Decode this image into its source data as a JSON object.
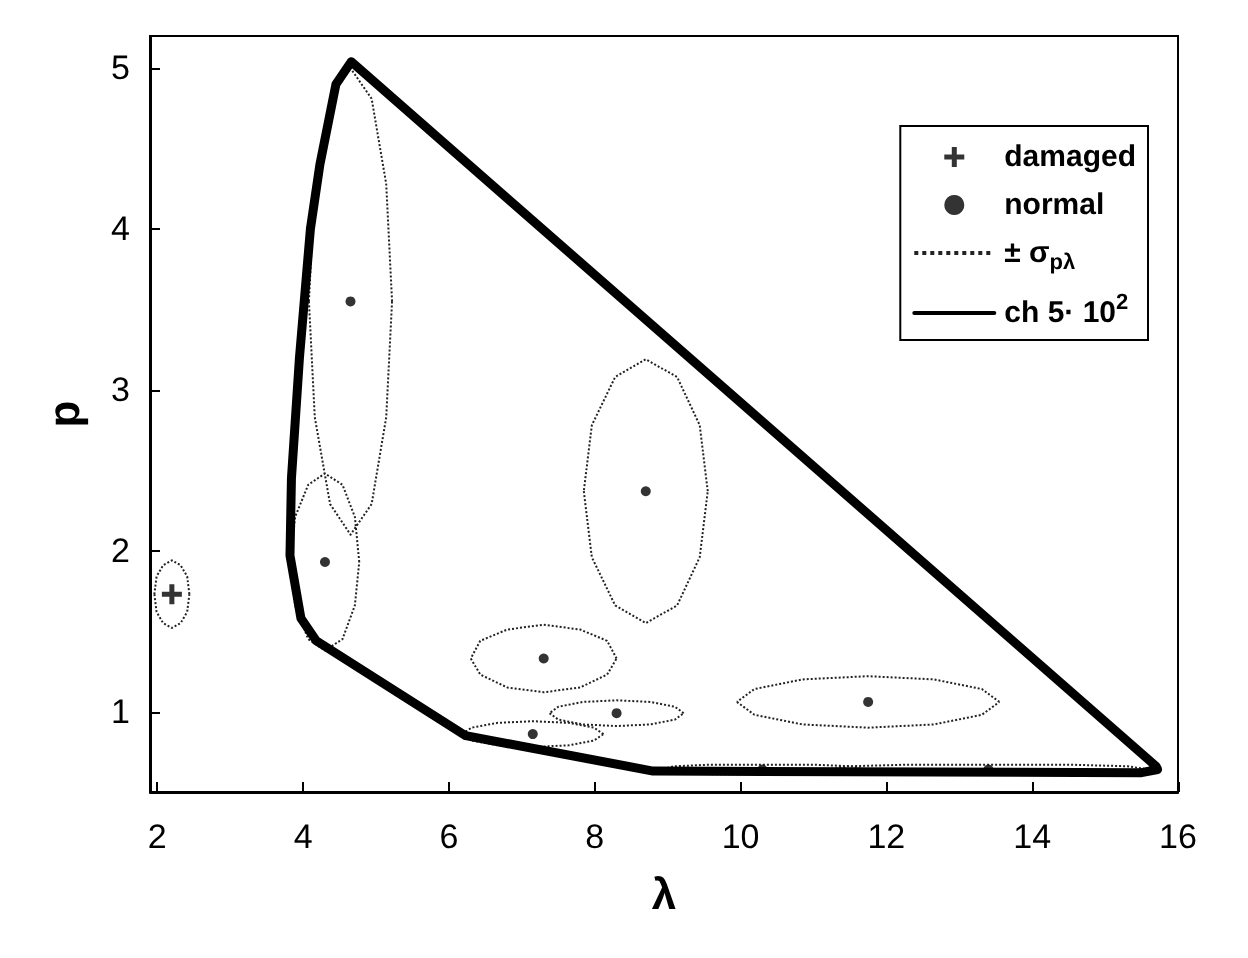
{
  "chart_data": {
    "type": "scatter",
    "xlabel": "λ",
    "ylabel": "p",
    "xlim": [
      1.9,
      16
    ],
    "ylim": [
      0.5,
      5.2
    ],
    "xticks": [
      2,
      4,
      6,
      8,
      10,
      12,
      14,
      16
    ],
    "yticks": [
      1,
      2,
      3,
      4,
      5
    ],
    "grid": false,
    "legend": "top right",
    "series": [
      {
        "name": "damaged",
        "marker": "cross",
        "color": "#000000",
        "x": [
          2.2
        ],
        "values": [
          1.73
        ]
      },
      {
        "name": "normal",
        "marker": "circle",
        "color": "#000000",
        "x": [
          4.65,
          4.3,
          8.7,
          7.3,
          8.3,
          7.15,
          11.75,
          10.3,
          13.4
        ],
        "values": [
          3.55,
          1.93,
          2.37,
          1.33,
          0.99,
          0.86,
          1.06,
          0.64,
          0.64
        ]
      },
      {
        "name": "± σ$_{pλ}$",
        "type": "line",
        "line_style": "dotted",
        "marker": "none",
        "color": "#222222",
        "x": [
          2.44,
          2.41,
          2.32,
          2.2,
          2.08,
          1.99,
          1.96,
          null,
          1.96,
          1.99,
          2.08,
          2.2,
          2.32,
          2.41,
          2.44,
          null,
          5.22,
          5.14,
          4.94,
          4.65,
          4.37,
          4.16,
          4.08,
          null,
          4.08,
          4.16,
          4.37,
          4.65,
          4.94,
          5.14,
          5.22,
          null,
          4.77,
          4.71,
          4.54,
          4.3,
          4.07,
          3.89,
          3.83,
          null,
          3.83,
          3.89,
          4.07,
          4.3,
          4.54,
          4.71,
          4.77,
          null,
          9.55,
          9.44,
          9.13,
          8.7,
          8.28,
          7.96,
          7.85,
          null,
          7.85,
          7.96,
          8.28,
          8.7,
          9.13,
          9.44,
          9.55,
          null,
          8.3,
          8.17,
          7.8,
          7.3,
          6.8,
          6.43,
          6.3,
          null,
          6.3,
          6.43,
          6.8,
          7.3,
          7.8,
          8.17,
          8.3,
          null,
          9.22,
          9.1,
          8.76,
          8.3,
          7.84,
          7.5,
          7.38,
          null,
          7.38,
          7.5,
          7.84,
          8.3,
          8.76,
          9.1,
          9.22,
          null,
          8.12,
          7.99,
          7.64,
          7.15,
          6.67,
          6.31,
          6.18,
          null,
          6.18,
          6.31,
          6.67,
          7.15,
          7.64,
          7.99,
          8.12,
          null,
          13.55,
          13.31,
          12.65,
          11.75,
          10.85,
          10.19,
          9.95,
          null,
          9.95,
          10.19,
          10.85,
          11.75,
          12.65,
          13.31,
          13.55,
          null,
          11.7,
          11.51,
          11.0,
          10.3,
          9.6,
          9.09,
          8.9,
          null,
          8.9,
          9.09,
          9.6,
          10.3,
          11.0,
          11.51,
          11.7,
          null,
          15.6,
          15.31,
          14.5,
          13.4,
          12.3,
          11.5,
          11.2,
          null,
          11.2,
          11.5,
          12.3,
          13.4,
          14.5,
          15.31,
          15.6
        ],
        "values": [
          1.73,
          1.84,
          1.91,
          1.94,
          1.91,
          1.84,
          1.73,
          null,
          1.73,
          1.62,
          1.55,
          1.52,
          1.55,
          1.62,
          1.73,
          null,
          3.55,
          4.28,
          4.81,
          5.0,
          4.81,
          4.28,
          3.55,
          null,
          3.55,
          2.83,
          2.29,
          2.1,
          2.29,
          2.83,
          3.55,
          null,
          1.93,
          2.21,
          2.41,
          2.48,
          2.41,
          2.21,
          1.93,
          null,
          1.93,
          1.66,
          1.45,
          1.38,
          1.45,
          1.66,
          1.93,
          null,
          2.37,
          2.78,
          3.08,
          3.19,
          3.08,
          2.78,
          2.37,
          null,
          2.37,
          1.96,
          1.66,
          1.55,
          1.66,
          1.96,
          2.37,
          null,
          1.33,
          1.44,
          1.51,
          1.54,
          1.51,
          1.44,
          1.33,
          null,
          1.33,
          1.23,
          1.15,
          1.12,
          1.15,
          1.23,
          1.33,
          null,
          0.99,
          1.03,
          1.06,
          1.07,
          1.06,
          1.03,
          0.99,
          null,
          0.99,
          0.95,
          0.92,
          0.91,
          0.92,
          0.95,
          0.99,
          null,
          0.86,
          0.9,
          0.93,
          0.94,
          0.93,
          0.9,
          0.86,
          null,
          0.86,
          0.82,
          0.79,
          0.78,
          0.79,
          0.82,
          0.86,
          null,
          1.06,
          1.14,
          1.2,
          1.22,
          1.2,
          1.14,
          1.06,
          null,
          1.06,
          0.98,
          0.92,
          0.9,
          0.92,
          0.98,
          1.06,
          null,
          0.64,
          0.66,
          0.67,
          0.67,
          0.67,
          0.66,
          0.64,
          null,
          0.64,
          0.63,
          0.61,
          0.61,
          0.61,
          0.63,
          0.64,
          null,
          0.64,
          0.66,
          0.67,
          0.67,
          0.67,
          0.66,
          0.64,
          null,
          0.64,
          0.63,
          0.61,
          0.61,
          0.61,
          0.63,
          0.64
        ]
      },
      {
        "name": "ch 5· 10$^{2}$",
        "type": "line",
        "line_style": "solid",
        "marker": "none",
        "color": "#000000",
        "x": [
          4.66,
          4.45,
          4.23,
          4.1,
          3.95,
          3.84,
          3.82,
          null,
          3.82,
          3.97,
          4.18,
          6.23,
          8.8,
          15.5,
          15.72,
          null,
          15.72,
          15.7,
          4.66
        ],
        "values": [
          5.04,
          4.9,
          4.4,
          4.0,
          3.2,
          2.45,
          1.97,
          null,
          1.97,
          1.58,
          1.44,
          0.85,
          0.63,
          0.62,
          0.64,
          null,
          0.64,
          0.66,
          5.04
        ]
      }
    ]
  }
}
